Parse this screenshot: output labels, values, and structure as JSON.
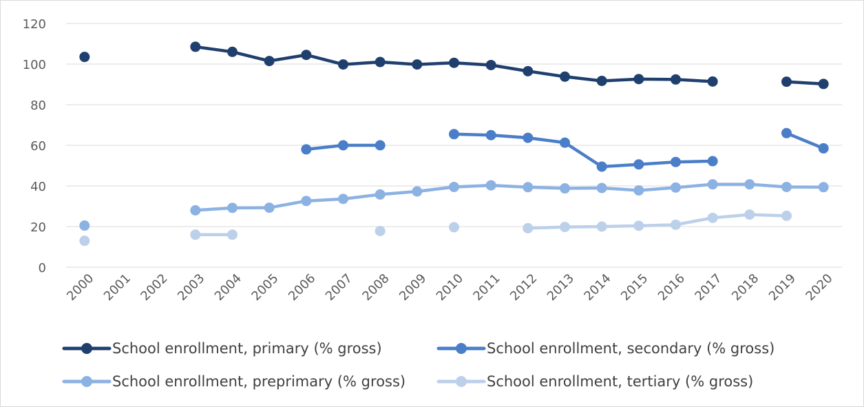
{
  "chart_data": {
    "type": "line",
    "title": "",
    "xlabel": "",
    "ylabel": "",
    "ylim": [
      0,
      120
    ],
    "yticks": [
      0,
      20,
      40,
      60,
      80,
      100,
      120
    ],
    "grid": true,
    "legend_position": "bottom",
    "x": [
      "2000",
      "2001",
      "2002",
      "2003",
      "2004",
      "2005",
      "2006",
      "2007",
      "2008",
      "2009",
      "2010",
      "2011",
      "2012",
      "2013",
      "2014",
      "2015",
      "2016",
      "2017",
      "2018",
      "2019",
      "2020"
    ],
    "series": [
      {
        "name": "School enrollment, primary (% gross)",
        "color": "#1f3f6e",
        "values": [
          103.5,
          null,
          null,
          108.5,
          106,
          101.5,
          104.5,
          99.8,
          101,
          99.8,
          100.6,
          99.5,
          96.5,
          93.8,
          91.7,
          92.6,
          92.4,
          91.4,
          null,
          91.3,
          90.2
        ]
      },
      {
        "name": "School enrollment, secondary (% gross)",
        "color": "#4a7ec8",
        "values": [
          null,
          null,
          null,
          null,
          null,
          null,
          58,
          60,
          60,
          null,
          65.5,
          65,
          63.7,
          61.3,
          49.5,
          50.6,
          51.8,
          52.2,
          null,
          66,
          58.5
        ]
      },
      {
        "name": "School enrollment, preprimary (% gross)",
        "color": "#8cb2e3",
        "values": [
          20.5,
          null,
          null,
          28,
          29.2,
          29.3,
          32.6,
          33.6,
          35.8,
          37.3,
          39.5,
          40.3,
          39.4,
          38.8,
          39,
          37.8,
          39.2,
          40.8,
          40.8,
          39.5,
          39.4
        ]
      },
      {
        "name": "School enrollment, tertiary (% gross)",
        "color": "#bcd0ea",
        "values": [
          13,
          null,
          null,
          16,
          16,
          null,
          null,
          null,
          17.8,
          null,
          19.7,
          null,
          19.2,
          19.8,
          20,
          20.4,
          20.9,
          24.3,
          25.9,
          25.3,
          null
        ]
      }
    ]
  }
}
